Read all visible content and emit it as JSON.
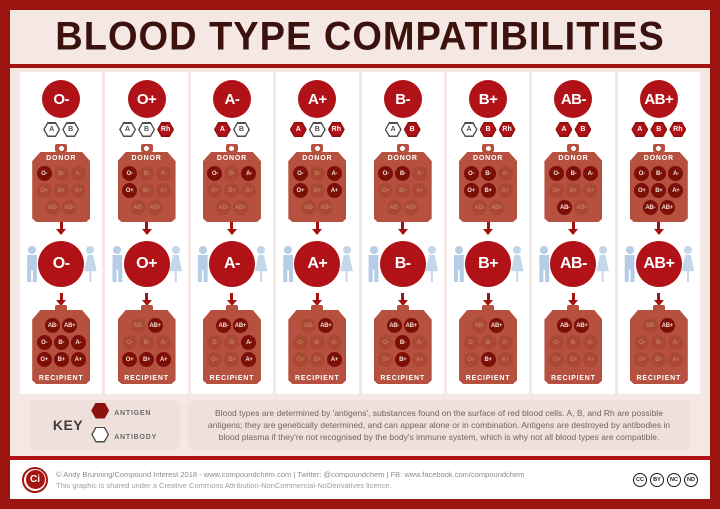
{
  "title": "BLOOD TYPE COMPATIBILITIES",
  "donor_label": "DONOR",
  "recipient_label": "RECIPIENT",
  "donor_grid": [
    [
      "O-",
      "B-",
      "A-"
    ],
    [
      "O+",
      "B+",
      "A+"
    ],
    [
      "AB-",
      "AB+"
    ]
  ],
  "recipient_grid": [
    [
      "AB-",
      "AB+"
    ],
    [
      "O-",
      "B-",
      "A-"
    ],
    [
      "O+",
      "B+",
      "A+"
    ]
  ],
  "columns": [
    {
      "type": "O-",
      "hexagons": [
        {
          "label": "A",
          "filled": false
        },
        {
          "label": "B",
          "filled": false
        }
      ],
      "donors": [
        "O-"
      ],
      "recipients": [
        "AB-",
        "AB+",
        "O-",
        "B-",
        "A-",
        "O+",
        "B+",
        "A+"
      ]
    },
    {
      "type": "O+",
      "hexagons": [
        {
          "label": "A",
          "filled": false
        },
        {
          "label": "B",
          "filled": false
        },
        {
          "label": "Rh",
          "filled": true
        }
      ],
      "donors": [
        "O-",
        "O+"
      ],
      "recipients": [
        "AB+",
        "O+",
        "B+",
        "A+"
      ]
    },
    {
      "type": "A-",
      "hexagons": [
        {
          "label": "A",
          "filled": true
        },
        {
          "label": "B",
          "filled": false
        }
      ],
      "donors": [
        "O-",
        "A-"
      ],
      "recipients": [
        "AB-",
        "AB+",
        "A-",
        "A+"
      ]
    },
    {
      "type": "A+",
      "hexagons": [
        {
          "label": "A",
          "filled": true
        },
        {
          "label": "B",
          "filled": false
        },
        {
          "label": "Rh",
          "filled": true
        }
      ],
      "donors": [
        "O-",
        "A-",
        "O+",
        "A+"
      ],
      "recipients": [
        "AB+",
        "A+"
      ]
    },
    {
      "type": "B-",
      "hexagons": [
        {
          "label": "A",
          "filled": false
        },
        {
          "label": "B",
          "filled": true
        }
      ],
      "donors": [
        "O-",
        "B-"
      ],
      "recipients": [
        "AB-",
        "AB+",
        "B-",
        "B+"
      ]
    },
    {
      "type": "B+",
      "hexagons": [
        {
          "label": "A",
          "filled": false
        },
        {
          "label": "B",
          "filled": true
        },
        {
          "label": "Rh",
          "filled": true
        }
      ],
      "donors": [
        "O-",
        "B-",
        "O+",
        "B+"
      ],
      "recipients": [
        "AB+",
        "B+"
      ]
    },
    {
      "type": "AB-",
      "hexagons": [
        {
          "label": "A",
          "filled": true
        },
        {
          "label": "B",
          "filled": true
        }
      ],
      "donors": [
        "O-",
        "B-",
        "A-",
        "AB-"
      ],
      "recipients": [
        "AB-",
        "AB+"
      ]
    },
    {
      "type": "AB+",
      "hexagons": [
        {
          "label": "A",
          "filled": true
        },
        {
          "label": "B",
          "filled": true
        },
        {
          "label": "Rh",
          "filled": true
        }
      ],
      "donors": [
        "O-",
        "B-",
        "A-",
        "O+",
        "B+",
        "A+",
        "AB-",
        "AB+"
      ],
      "recipients": [
        "AB+"
      ]
    }
  ],
  "key": {
    "label": "KEY",
    "antigen_label": "ANTIGEN",
    "antibody_label": "ANTIBODY"
  },
  "description": "Blood types are determined by 'antigens', substances found on the surface of red blood cells. A, B, and Rh are possible antigens; they are genetically determined, and can appear alone or in combination. Antigens are destroyed by antibodies in blood plasma if they're not recognised by the body's immune system, which is why not all blood types are compatible.",
  "footer": {
    "logo": "Ci",
    "line1": "© Andy Brunning/Compound Interest 2018 - www.compoundchem.com | Twitter: @compoundchem | FB: www.facebook.com/compoundchem",
    "line2": "This graphic is shared under a Creative Commons Attribution-NonCommercial-NoDerivatives licence.",
    "cc_badges": [
      "CC",
      "BY",
      "NC",
      "ND"
    ]
  },
  "colors": {
    "frame": "#9c1511",
    "background": "#f5e8e4",
    "accent_red": "#b11218",
    "bag": "#b65140",
    "highlight_cell": "#7c0f08",
    "people_blue": "#b6cde6"
  }
}
